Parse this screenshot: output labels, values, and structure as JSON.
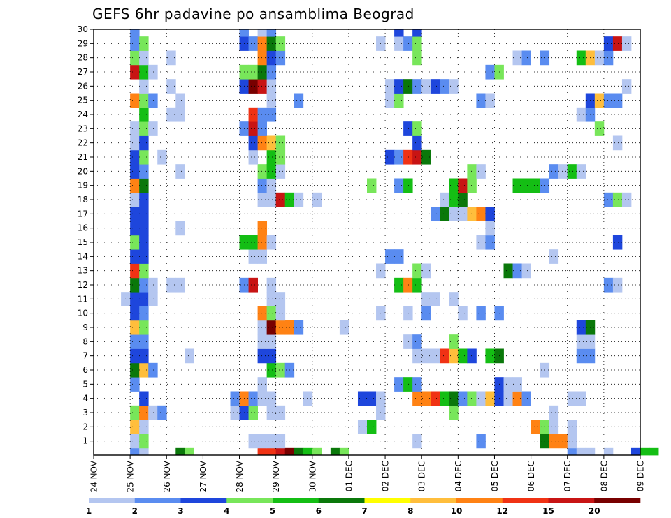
{
  "chart_data": {
    "type": "heatmap",
    "title": "GEFS 6hr padavine po ansamblima Beograd",
    "xlabel": "",
    "ylabel": "",
    "x_ticks": [
      "24 NOV",
      "25 NOV",
      "26 NOV",
      "27 NOV",
      "28 NOV",
      "29 NOV",
      "30 NOV",
      "01 DEC",
      "02 DEC",
      "03 DEC",
      "04 DEC",
      "05 DEC",
      "06 DEC",
      "07 DEC",
      "08 DEC",
      "09 DEC"
    ],
    "y_ticks": [
      1,
      2,
      3,
      4,
      5,
      6,
      7,
      8,
      9,
      10,
      11,
      12,
      13,
      14,
      15,
      16,
      17,
      18,
      19,
      20,
      21,
      22,
      23,
      24,
      25,
      26,
      27,
      28,
      29,
      30
    ],
    "ylim": [
      0,
      30
    ],
    "x_step_hours": 6,
    "grid": true,
    "colorbar": {
      "labels": [
        "1",
        "2",
        "3",
        "4",
        "5",
        "6",
        "7",
        "8",
        "10",
        "12",
        "15",
        "20"
      ],
      "colors": [
        "#b4c6f0",
        "#5a8cf0",
        "#1e46dc",
        "#78e65a",
        "#14be14",
        "#0a780a",
        "#ffff00",
        "#ffbe3c",
        "#ff8214",
        "#f03214",
        "#c81414",
        "#780000"
      ]
    },
    "cells": [
      [
        4,
        0,
        2
      ],
      [
        5,
        0,
        1
      ],
      [
        9,
        0,
        6
      ],
      [
        10,
        0,
        4
      ],
      [
        18,
        0,
        12
      ],
      [
        19,
        0,
        12
      ],
      [
        20,
        0,
        15
      ],
      [
        21,
        0,
        20
      ],
      [
        22,
        0,
        6
      ],
      [
        23,
        0,
        5
      ],
      [
        24,
        0,
        4
      ],
      [
        26,
        0,
        6
      ],
      [
        27,
        0,
        4
      ],
      [
        52,
        0,
        2
      ],
      [
        53,
        0,
        1
      ],
      [
        54,
        0,
        1
      ],
      [
        56,
        0,
        1
      ],
      [
        59,
        0,
        3
      ],
      [
        60,
        0,
        5
      ],
      [
        61,
        0,
        5
      ],
      [
        4,
        1,
        1
      ],
      [
        5,
        1,
        4
      ],
      [
        17,
        1,
        1
      ],
      [
        18,
        1,
        1
      ],
      [
        19,
        1,
        1
      ],
      [
        20,
        1,
        1
      ],
      [
        35,
        1,
        1
      ],
      [
        42,
        1,
        2
      ],
      [
        49,
        1,
        6
      ],
      [
        50,
        1,
        10
      ],
      [
        51,
        1,
        10
      ],
      [
        52,
        1,
        1
      ],
      [
        4,
        2,
        8
      ],
      [
        5,
        2,
        1
      ],
      [
        29,
        2,
        1
      ],
      [
        30,
        2,
        5
      ],
      [
        48,
        2,
        10
      ],
      [
        49,
        2,
        4
      ],
      [
        50,
        2,
        1
      ],
      [
        52,
        2,
        1
      ],
      [
        4,
        3,
        4
      ],
      [
        5,
        3,
        10
      ],
      [
        6,
        3,
        1
      ],
      [
        7,
        3,
        2
      ],
      [
        15,
        3,
        1
      ],
      [
        16,
        3,
        3
      ],
      [
        17,
        3,
        4
      ],
      [
        19,
        3,
        1
      ],
      [
        20,
        3,
        1
      ],
      [
        31,
        3,
        1
      ],
      [
        39,
        3,
        4
      ],
      [
        50,
        3,
        1
      ],
      [
        5,
        4,
        3
      ],
      [
        15,
        4,
        2
      ],
      [
        16,
        4,
        10
      ],
      [
        17,
        4,
        2
      ],
      [
        18,
        4,
        1
      ],
      [
        19,
        4,
        1
      ],
      [
        23,
        4,
        1
      ],
      [
        29,
        4,
        3
      ],
      [
        30,
        4,
        3
      ],
      [
        31,
        4,
        1
      ],
      [
        35,
        4,
        10
      ],
      [
        36,
        4,
        10
      ],
      [
        37,
        4,
        12
      ],
      [
        38,
        4,
        5
      ],
      [
        39,
        4,
        6
      ],
      [
        40,
        4,
        2
      ],
      [
        41,
        4,
        4
      ],
      [
        42,
        4,
        1
      ],
      [
        43,
        4,
        8
      ],
      [
        44,
        4,
        3
      ],
      [
        45,
        4,
        1
      ],
      [
        46,
        4,
        10
      ],
      [
        47,
        4,
        2
      ],
      [
        52,
        4,
        1
      ],
      [
        53,
        4,
        1
      ],
      [
        4,
        5,
        2
      ],
      [
        18,
        5,
        1
      ],
      [
        33,
        5,
        2
      ],
      [
        34,
        5,
        5
      ],
      [
        35,
        5,
        2
      ],
      [
        44,
        5,
        3
      ],
      [
        45,
        5,
        1
      ],
      [
        46,
        5,
        1
      ],
      [
        4,
        6,
        6
      ],
      [
        5,
        6,
        8
      ],
      [
        6,
        6,
        2
      ],
      [
        19,
        6,
        5
      ],
      [
        20,
        6,
        4
      ],
      [
        21,
        6,
        2
      ],
      [
        49,
        6,
        1
      ],
      [
        4,
        7,
        3
      ],
      [
        5,
        7,
        3
      ],
      [
        10,
        7,
        1
      ],
      [
        18,
        7,
        3
      ],
      [
        19,
        7,
        3
      ],
      [
        35,
        7,
        1
      ],
      [
        36,
        7,
        1
      ],
      [
        37,
        7,
        1
      ],
      [
        38,
        7,
        12
      ],
      [
        39,
        7,
        8
      ],
      [
        40,
        7,
        5
      ],
      [
        41,
        7,
        3
      ],
      [
        43,
        7,
        5
      ],
      [
        44,
        7,
        6
      ],
      [
        53,
        7,
        2
      ],
      [
        54,
        7,
        2
      ],
      [
        4,
        8,
        2
      ],
      [
        5,
        8,
        2
      ],
      [
        18,
        8,
        1
      ],
      [
        19,
        8,
        1
      ],
      [
        34,
        8,
        1
      ],
      [
        35,
        8,
        2
      ],
      [
        39,
        8,
        4
      ],
      [
        53,
        8,
        1
      ],
      [
        54,
        8,
        1
      ],
      [
        4,
        9,
        8
      ],
      [
        5,
        9,
        4
      ],
      [
        18,
        9,
        1
      ],
      [
        19,
        9,
        20
      ],
      [
        20,
        9,
        10
      ],
      [
        21,
        9,
        10
      ],
      [
        22,
        9,
        2
      ],
      [
        27,
        9,
        1
      ],
      [
        53,
        9,
        3
      ],
      [
        54,
        9,
        6
      ],
      [
        4,
        10,
        3
      ],
      [
        5,
        10,
        2
      ],
      [
        18,
        10,
        10
      ],
      [
        19,
        10,
        4
      ],
      [
        20,
        10,
        1
      ],
      [
        31,
        10,
        1
      ],
      [
        34,
        10,
        1
      ],
      [
        36,
        10,
        2
      ],
      [
        40,
        10,
        1
      ],
      [
        42,
        10,
        2
      ],
      [
        44,
        10,
        2
      ],
      [
        3,
        11,
        1
      ],
      [
        4,
        11,
        3
      ],
      [
        5,
        11,
        3
      ],
      [
        6,
        11,
        1
      ],
      [
        19,
        11,
        1
      ],
      [
        20,
        11,
        1
      ],
      [
        36,
        11,
        1
      ],
      [
        37,
        11,
        1
      ],
      [
        39,
        11,
        1
      ],
      [
        4,
        12,
        6
      ],
      [
        5,
        12,
        2
      ],
      [
        6,
        12,
        1
      ],
      [
        8,
        12,
        1
      ],
      [
        9,
        12,
        1
      ],
      [
        16,
        12,
        2
      ],
      [
        17,
        12,
        15
      ],
      [
        19,
        12,
        1
      ],
      [
        33,
        12,
        5
      ],
      [
        34,
        12,
        10
      ],
      [
        35,
        12,
        5
      ],
      [
        56,
        12,
        2
      ],
      [
        57,
        12,
        1
      ],
      [
        4,
        13,
        12
      ],
      [
        5,
        13,
        4
      ],
      [
        31,
        13,
        1
      ],
      [
        35,
        13,
        4
      ],
      [
        36,
        13,
        1
      ],
      [
        45,
        13,
        6
      ],
      [
        46,
        13,
        2
      ],
      [
        47,
        13,
        1
      ],
      [
        4,
        14,
        3
      ],
      [
        5,
        14,
        3
      ],
      [
        17,
        14,
        1
      ],
      [
        18,
        14,
        1
      ],
      [
        32,
        14,
        2
      ],
      [
        33,
        14,
        2
      ],
      [
        50,
        14,
        1
      ],
      [
        4,
        15,
        4
      ],
      [
        5,
        15,
        3
      ],
      [
        16,
        15,
        5
      ],
      [
        17,
        15,
        5
      ],
      [
        18,
        15,
        10
      ],
      [
        19,
        15,
        1
      ],
      [
        42,
        15,
        1
      ],
      [
        43,
        15,
        2
      ],
      [
        57,
        15,
        3
      ],
      [
        4,
        16,
        3
      ],
      [
        5,
        16,
        3
      ],
      [
        9,
        16,
        1
      ],
      [
        18,
        16,
        10
      ],
      [
        43,
        16,
        1
      ],
      [
        4,
        17,
        3
      ],
      [
        5,
        17,
        3
      ],
      [
        37,
        17,
        2
      ],
      [
        38,
        17,
        6
      ],
      [
        39,
        17,
        1
      ],
      [
        40,
        17,
        1
      ],
      [
        41,
        17,
        8
      ],
      [
        42,
        17,
        10
      ],
      [
        43,
        17,
        3
      ],
      [
        4,
        18,
        1
      ],
      [
        5,
        18,
        3
      ],
      [
        18,
        18,
        1
      ],
      [
        19,
        18,
        1
      ],
      [
        20,
        18,
        15
      ],
      [
        21,
        18,
        5
      ],
      [
        22,
        18,
        1
      ],
      [
        24,
        18,
        1
      ],
      [
        38,
        18,
        1
      ],
      [
        39,
        18,
        5
      ],
      [
        40,
        18,
        6
      ],
      [
        56,
        18,
        2
      ],
      [
        57,
        18,
        4
      ],
      [
        58,
        18,
        1
      ],
      [
        4,
        19,
        10
      ],
      [
        5,
        19,
        6
      ],
      [
        18,
        19,
        2
      ],
      [
        19,
        19,
        1
      ],
      [
        30,
        19,
        4
      ],
      [
        33,
        19,
        2
      ],
      [
        34,
        19,
        5
      ],
      [
        39,
        19,
        5
      ],
      [
        40,
        19,
        15
      ],
      [
        41,
        19,
        4
      ],
      [
        46,
        19,
        5
      ],
      [
        47,
        19,
        5
      ],
      [
        48,
        19,
        5
      ],
      [
        49,
        19,
        2
      ],
      [
        4,
        20,
        3
      ],
      [
        5,
        20,
        2
      ],
      [
        9,
        20,
        1
      ],
      [
        18,
        20,
        4
      ],
      [
        19,
        20,
        5
      ],
      [
        20,
        20,
        1
      ],
      [
        41,
        20,
        4
      ],
      [
        42,
        20,
        1
      ],
      [
        50,
        20,
        2
      ],
      [
        51,
        20,
        1
      ],
      [
        52,
        20,
        5
      ],
      [
        53,
        20,
        1
      ],
      [
        4,
        21,
        3
      ],
      [
        5,
        21,
        4
      ],
      [
        7,
        21,
        1
      ],
      [
        17,
        21,
        1
      ],
      [
        19,
        21,
        5
      ],
      [
        20,
        21,
        4
      ],
      [
        32,
        21,
        3
      ],
      [
        33,
        21,
        2
      ],
      [
        34,
        21,
        12
      ],
      [
        35,
        21,
        15
      ],
      [
        36,
        21,
        6
      ],
      [
        4,
        22,
        1
      ],
      [
        5,
        22,
        3
      ],
      [
        17,
        22,
        3
      ],
      [
        18,
        22,
        10
      ],
      [
        19,
        22,
        8
      ],
      [
        20,
        22,
        4
      ],
      [
        35,
        22,
        3
      ],
      [
        57,
        22,
        1
      ],
      [
        4,
        23,
        1
      ],
      [
        5,
        23,
        4
      ],
      [
        6,
        23,
        1
      ],
      [
        16,
        23,
        2
      ],
      [
        17,
        23,
        15
      ],
      [
        18,
        23,
        2
      ],
      [
        34,
        23,
        3
      ],
      [
        35,
        23,
        4
      ],
      [
        55,
        23,
        4
      ],
      [
        5,
        24,
        5
      ],
      [
        8,
        24,
        1
      ],
      [
        9,
        24,
        1
      ],
      [
        17,
        24,
        12
      ],
      [
        18,
        24,
        2
      ],
      [
        19,
        24,
        2
      ],
      [
        53,
        24,
        1
      ],
      [
        54,
        24,
        2
      ],
      [
        4,
        25,
        10
      ],
      [
        5,
        25,
        4
      ],
      [
        6,
        25,
        2
      ],
      [
        9,
        25,
        1
      ],
      [
        19,
        25,
        1
      ],
      [
        22,
        25,
        2
      ],
      [
        32,
        25,
        1
      ],
      [
        33,
        25,
        4
      ],
      [
        42,
        25,
        2
      ],
      [
        43,
        25,
        1
      ],
      [
        54,
        25,
        3
      ],
      [
        55,
        25,
        8
      ],
      [
        56,
        25,
        2
      ],
      [
        57,
        25,
        2
      ],
      [
        5,
        26,
        1
      ],
      [
        8,
        26,
        1
      ],
      [
        16,
        26,
        3
      ],
      [
        17,
        26,
        20
      ],
      [
        18,
        26,
        15
      ],
      [
        19,
        26,
        1
      ],
      [
        32,
        26,
        1
      ],
      [
        33,
        26,
        3
      ],
      [
        34,
        26,
        6
      ],
      [
        35,
        26,
        2
      ],
      [
        36,
        26,
        1
      ],
      [
        37,
        26,
        3
      ],
      [
        38,
        26,
        2
      ],
      [
        39,
        26,
        1
      ],
      [
        58,
        26,
        1
      ],
      [
        4,
        27,
        15
      ],
      [
        5,
        27,
        5
      ],
      [
        6,
        27,
        1
      ],
      [
        16,
        27,
        4
      ],
      [
        17,
        27,
        4
      ],
      [
        18,
        27,
        6
      ],
      [
        19,
        27,
        2
      ],
      [
        43,
        27,
        2
      ],
      [
        44,
        27,
        4
      ],
      [
        4,
        28,
        4
      ],
      [
        5,
        28,
        1
      ],
      [
        8,
        28,
        1
      ],
      [
        18,
        28,
        10
      ],
      [
        19,
        28,
        3
      ],
      [
        20,
        28,
        2
      ],
      [
        35,
        28,
        4
      ],
      [
        46,
        28,
        1
      ],
      [
        47,
        28,
        2
      ],
      [
        49,
        28,
        2
      ],
      [
        53,
        28,
        5
      ],
      [
        54,
        28,
        8
      ],
      [
        55,
        28,
        1
      ],
      [
        56,
        28,
        2
      ],
      [
        4,
        29,
        2
      ],
      [
        5,
        29,
        4
      ],
      [
        16,
        29,
        3
      ],
      [
        17,
        29,
        2
      ],
      [
        18,
        29,
        10
      ],
      [
        19,
        29,
        6
      ],
      [
        20,
        29,
        4
      ],
      [
        31,
        29,
        1
      ],
      [
        33,
        29,
        1
      ],
      [
        34,
        29,
        2
      ],
      [
        35,
        29,
        4
      ],
      [
        56,
        29,
        3
      ],
      [
        57,
        29,
        15
      ],
      [
        58,
        29,
        1
      ],
      [
        4,
        30,
        2
      ],
      [
        16,
        30,
        2
      ],
      [
        18,
        30,
        1
      ],
      [
        19,
        30,
        2
      ],
      [
        33,
        30,
        3
      ],
      [
        35,
        30,
        3
      ]
    ]
  }
}
